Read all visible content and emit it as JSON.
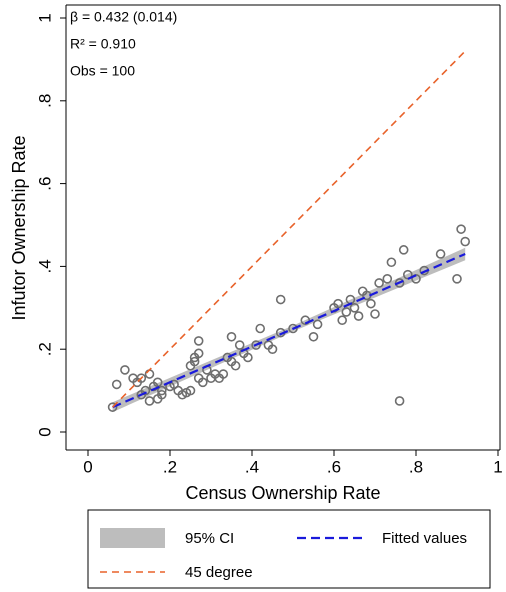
{
  "chart_data": {
    "type": "scatter",
    "xlabel": "Census Ownership Rate",
    "ylabel": "Infutor Ownership Rate",
    "annotations": [
      "β = 0.432 (0.014)",
      "R² = 0.910",
      "Obs = 100"
    ],
    "xlim": [
      0,
      1
    ],
    "ylim": [
      0,
      1
    ],
    "xticks": [
      0,
      {
        "value": 0.2,
        "label": ".2"
      },
      {
        "value": 0.4,
        "label": ".4"
      },
      {
        "value": 0.6,
        "label": ".6"
      },
      {
        "value": 0.8,
        "label": ".8"
      },
      1
    ],
    "yticks": [
      0,
      {
        "value": 0.2,
        "label": ".2"
      },
      {
        "value": 0.4,
        "label": ".4"
      },
      {
        "value": 0.6,
        "label": ".6"
      },
      {
        "value": 0.8,
        "label": ".8"
      },
      1
    ],
    "points": {
      "color": "#6e6e6e",
      "x": [
        0.06,
        0.07,
        0.09,
        0.11,
        0.12,
        0.13,
        0.13,
        0.14,
        0.15,
        0.15,
        0.16,
        0.17,
        0.17,
        0.18,
        0.18,
        0.2,
        0.21,
        0.22,
        0.23,
        0.24,
        0.25,
        0.25,
        0.26,
        0.26,
        0.27,
        0.27,
        0.27,
        0.28,
        0.29,
        0.3,
        0.31,
        0.32,
        0.33,
        0.34,
        0.35,
        0.35,
        0.36,
        0.37,
        0.38,
        0.39,
        0.41,
        0.42,
        0.44,
        0.45,
        0.47,
        0.47,
        0.5,
        0.53,
        0.55,
        0.56,
        0.6,
        0.61,
        0.62,
        0.63,
        0.64,
        0.65,
        0.66,
        0.67,
        0.68,
        0.69,
        0.7,
        0.71,
        0.73,
        0.74,
        0.76,
        0.76,
        0.77,
        0.78,
        0.8,
        0.82,
        0.86,
        0.9,
        0.91,
        0.92
      ],
      "values": [
        0.06,
        0.115,
        0.15,
        0.13,
        0.12,
        0.13,
        0.09,
        0.1,
        0.14,
        0.075,
        0.11,
        0.08,
        0.12,
        0.09,
        0.1,
        0.11,
        0.115,
        0.1,
        0.09,
        0.095,
        0.1,
        0.16,
        0.17,
        0.18,
        0.19,
        0.22,
        0.13,
        0.12,
        0.15,
        0.13,
        0.14,
        0.13,
        0.14,
        0.18,
        0.17,
        0.23,
        0.16,
        0.21,
        0.19,
        0.18,
        0.21,
        0.25,
        0.21,
        0.2,
        0.32,
        0.24,
        0.25,
        0.27,
        0.23,
        0.26,
        0.3,
        0.31,
        0.27,
        0.29,
        0.32,
        0.3,
        0.28,
        0.34,
        0.33,
        0.31,
        0.285,
        0.36,
        0.37,
        0.41,
        0.36,
        0.075,
        0.44,
        0.38,
        0.37,
        0.39,
        0.43,
        0.37,
        0.49,
        0.46
      ]
    },
    "series": [
      {
        "name": "95% CI",
        "color": "#bdbdbd",
        "x": [
          0.06,
          0.5,
          0.92
        ],
        "lower": [
          0.048,
          0.243,
          0.415
        ],
        "upper": [
          0.072,
          0.257,
          0.445
        ]
      },
      {
        "name": "Fitted values",
        "color": "#1a1adb",
        "x": [
          0.06,
          0.92
        ],
        "values": [
          0.06,
          0.43
        ]
      },
      {
        "name": "45 degree",
        "color": "#e8622a",
        "x": [
          0.06,
          0.92
        ],
        "values": [
          0.06,
          0.92
        ]
      }
    ]
  }
}
